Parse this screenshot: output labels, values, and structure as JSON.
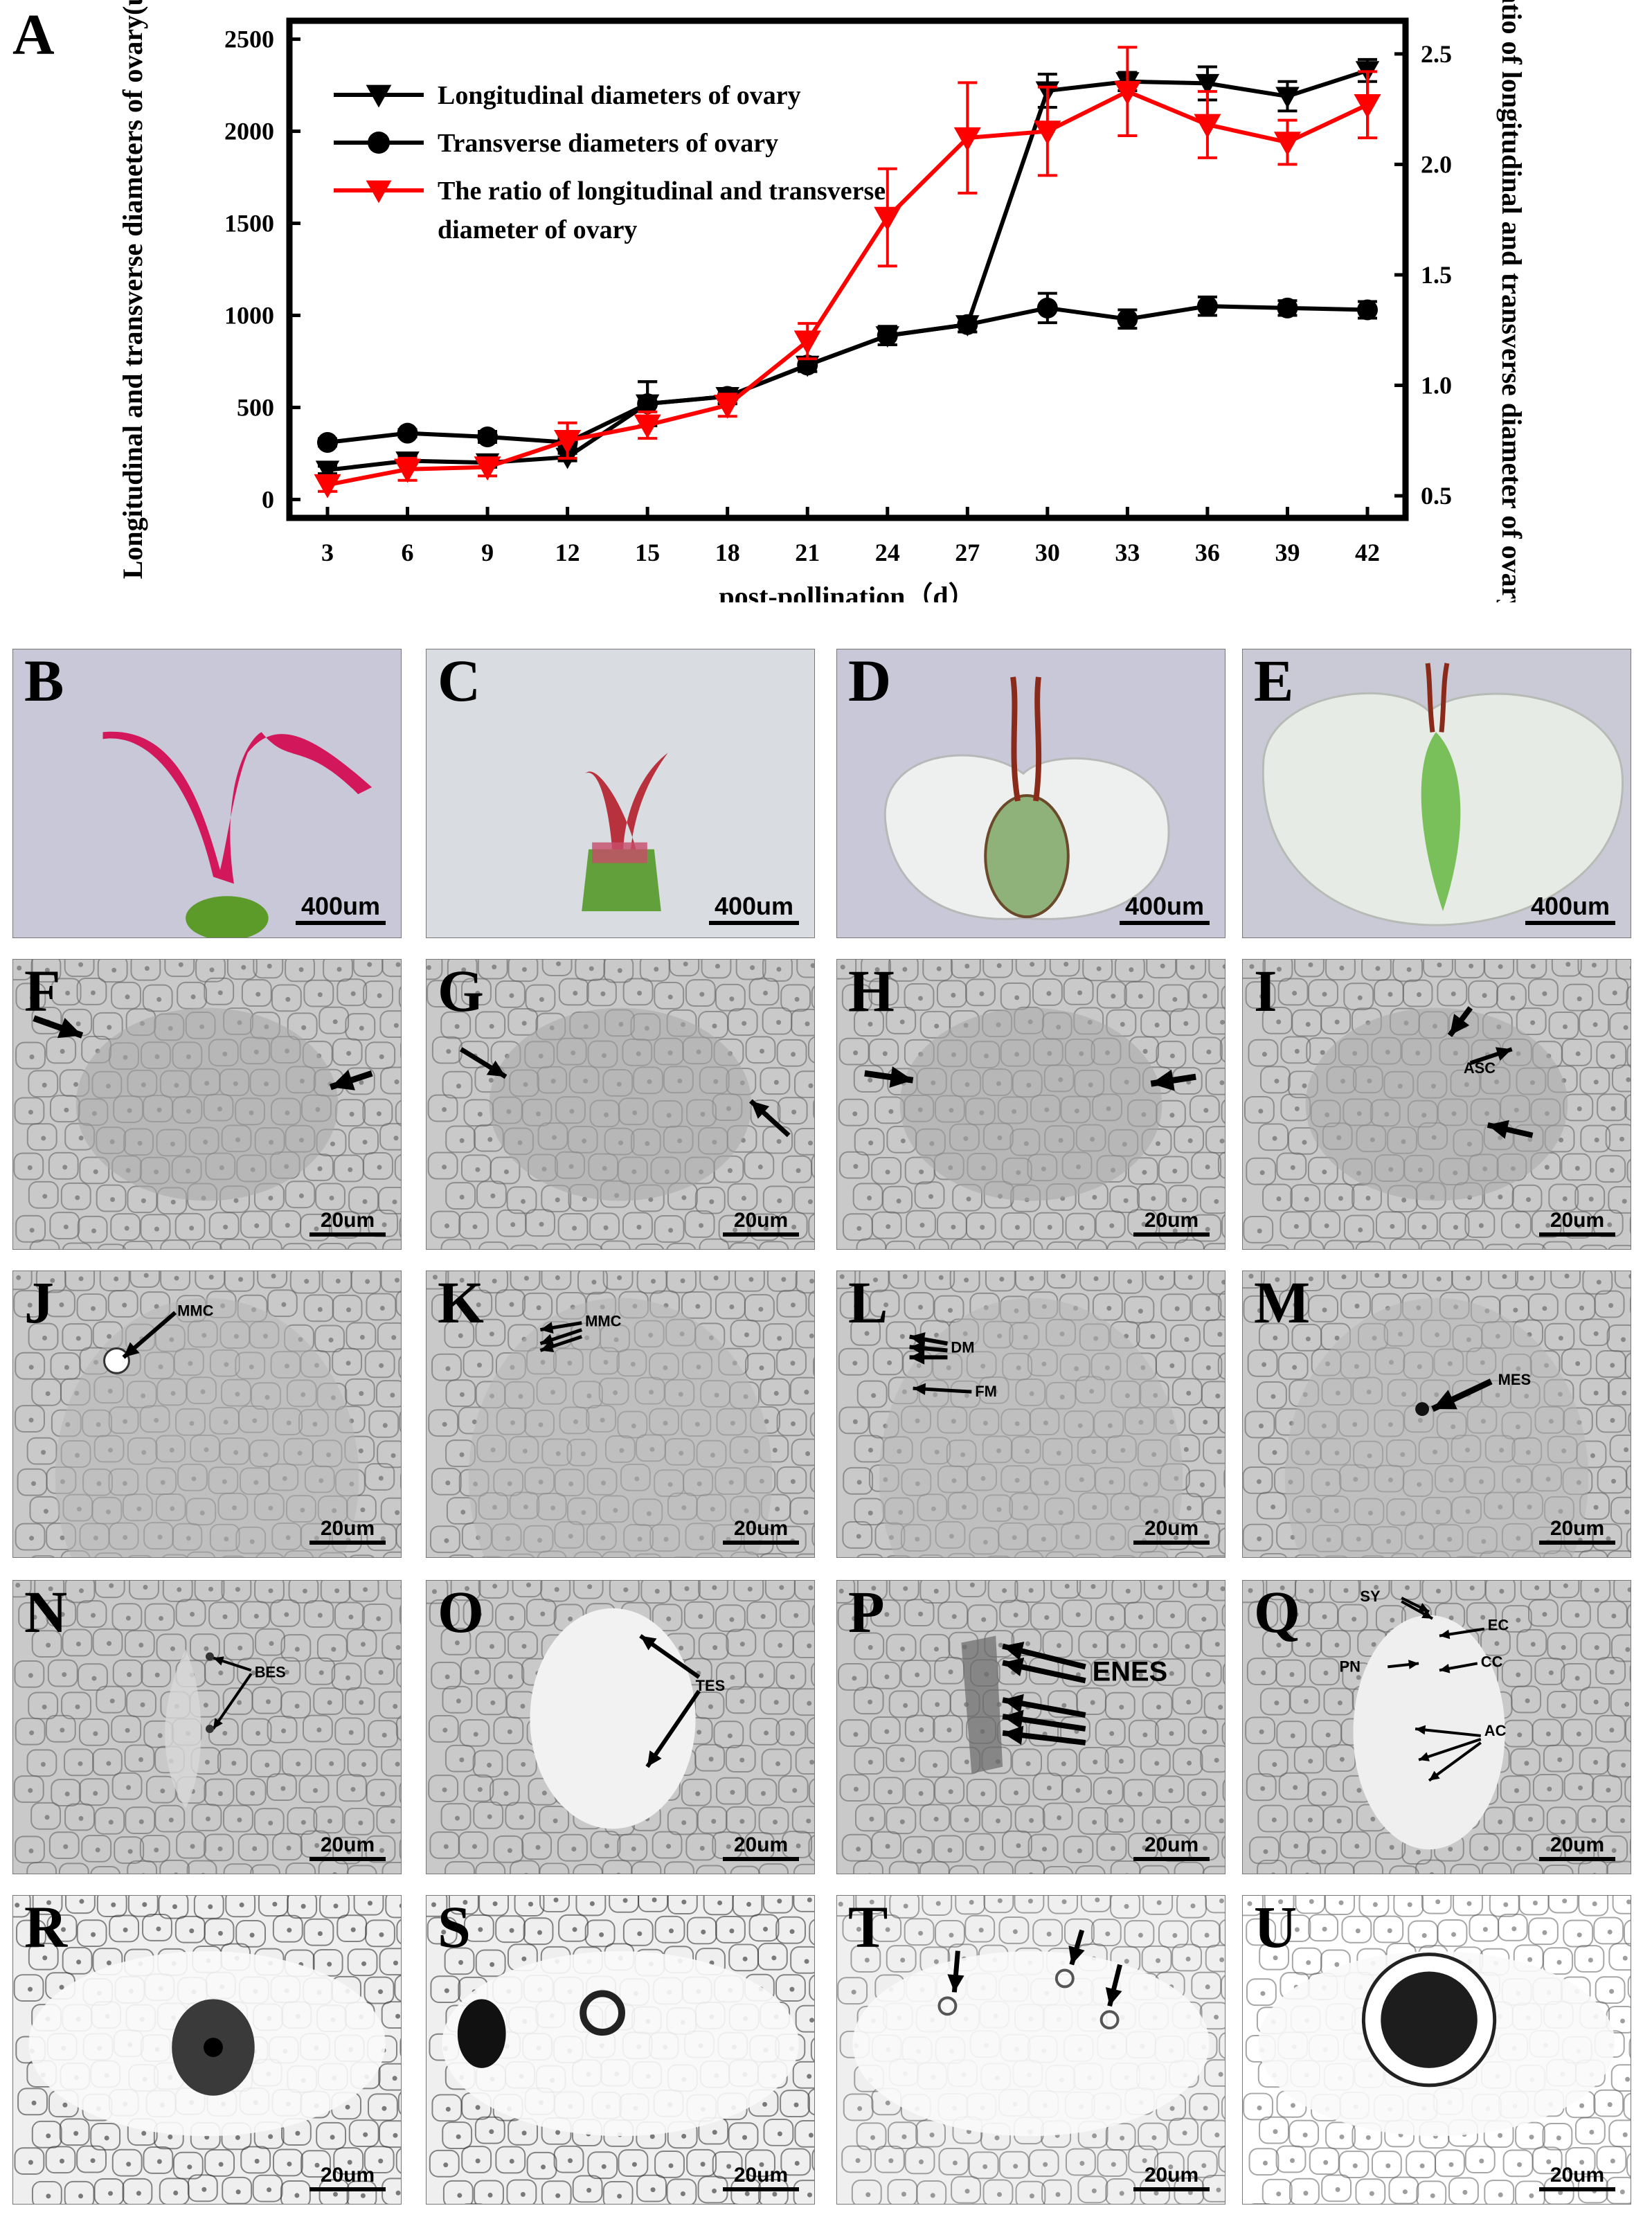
{
  "figure": {
    "panel_a_letter": "A",
    "panels": [
      {
        "letter": "B",
        "scale": "400um",
        "kind": "pistil",
        "style": "pistil-red"
      },
      {
        "letter": "C",
        "scale": "400um",
        "kind": "pistil",
        "style": "pistil-small"
      },
      {
        "letter": "D",
        "scale": "400um",
        "kind": "ovary",
        "style": "ovary-mid"
      },
      {
        "letter": "E",
        "scale": "400um",
        "kind": "ovary",
        "style": "ovary-large"
      },
      {
        "letter": "F",
        "scale": "20um",
        "labels": []
      },
      {
        "letter": "G",
        "scale": "20um",
        "labels": []
      },
      {
        "letter": "H",
        "scale": "20um",
        "labels": []
      },
      {
        "letter": "I",
        "scale": "20um",
        "labels": [
          "ASC"
        ]
      },
      {
        "letter": "J",
        "scale": "20um",
        "labels": [
          "MMC"
        ]
      },
      {
        "letter": "K",
        "scale": "20um",
        "labels": [
          "MMC"
        ]
      },
      {
        "letter": "L",
        "scale": "20um",
        "labels": [
          "DM",
          "FM"
        ]
      },
      {
        "letter": "M",
        "scale": "20um",
        "labels": [
          "MES"
        ]
      },
      {
        "letter": "N",
        "scale": "20um",
        "labels": [
          "BES"
        ]
      },
      {
        "letter": "O",
        "scale": "20um",
        "labels": [
          "TES"
        ]
      },
      {
        "letter": "P",
        "scale": "20um",
        "labels": [
          "ENES"
        ]
      },
      {
        "letter": "Q",
        "scale": "20um",
        "labels": [
          "SY",
          "EC",
          "CC",
          "PN",
          "AC"
        ]
      },
      {
        "letter": "R",
        "scale": "20um",
        "labels": []
      },
      {
        "letter": "S",
        "scale": "20um",
        "labels": []
      },
      {
        "letter": "T",
        "scale": "20um",
        "labels": []
      },
      {
        "letter": "U",
        "scale": "20um",
        "labels": []
      }
    ]
  },
  "chart_data": {
    "type": "line",
    "xlabel": "post-pollination（d）",
    "ylabel": "Longitudinal and transverse diameters of ovary(um)",
    "y2label": "The ratio of longitudinal and transverse diameter of ovary",
    "x": [
      3,
      6,
      9,
      12,
      15,
      18,
      21,
      24,
      27,
      30,
      33,
      36,
      39,
      42
    ],
    "ylim": [
      -100,
      2600
    ],
    "y2lim": [
      0.4,
      2.65
    ],
    "yticks": [
      0,
      500,
      1000,
      1500,
      2000,
      2500
    ],
    "y2ticks": [
      "0.5",
      "1.0",
      "1.5",
      "2.0",
      "2.5"
    ],
    "legend_position": "top-left",
    "grid": false,
    "series": [
      {
        "name": "Longitudinal diameters of ovary",
        "axis": "left",
        "marker": "triangle-down",
        "color": "#000000",
        "values": [
          160,
          210,
          200,
          230,
          520,
          560,
          730,
          890,
          950,
          2220,
          2270,
          2260,
          2190,
          2330
        ],
        "errors": [
          20,
          20,
          25,
          20,
          120,
          40,
          35,
          50,
          40,
          90,
          50,
          90,
          80,
          60
        ]
      },
      {
        "name": "Transverse diameters of ovary",
        "axis": "left",
        "marker": "circle",
        "color": "#000000",
        "values": [
          310,
          360,
          340,
          310,
          520,
          560,
          730,
          890,
          950,
          1040,
          980,
          1050,
          1040,
          1030
        ],
        "errors": [
          20,
          20,
          30,
          25,
          120,
          40,
          35,
          50,
          40,
          80,
          50,
          50,
          40,
          45
        ]
      },
      {
        "name": "The ratio of longitudinal and transverse diameter of ovary",
        "axis": "right",
        "marker": "triangle-down",
        "color": "#ff0000",
        "values": [
          0.55,
          0.62,
          0.63,
          0.75,
          0.82,
          0.91,
          1.2,
          1.76,
          2.12,
          2.15,
          2.33,
          2.18,
          2.1,
          2.27
        ],
        "errors": [
          0.03,
          0.05,
          0.04,
          0.08,
          0.06,
          0.05,
          0.08,
          0.22,
          0.25,
          0.2,
          0.2,
          0.15,
          0.1,
          0.15
        ]
      }
    ]
  }
}
